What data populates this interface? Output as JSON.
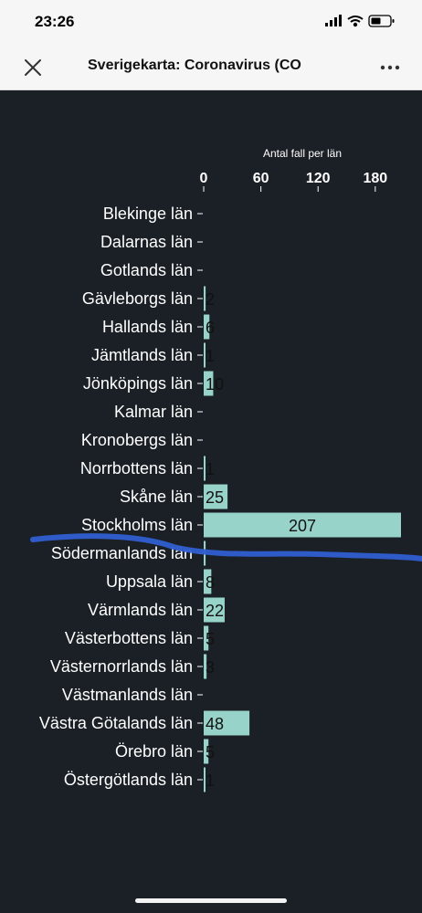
{
  "status_bar": {
    "time": "23:26"
  },
  "nav": {
    "title": "Sverigekarta: Coronavirus (CO",
    "close_icon": "close-icon",
    "more_icon": "more-icon"
  },
  "colors": {
    "background": "#1a2026",
    "bar": "#97d3c8",
    "text": "#ffffff",
    "bar_label": "#111111"
  },
  "chart_data": {
    "type": "bar",
    "orientation": "horizontal",
    "title": "Antal fall per län",
    "xlim": [
      0,
      207
    ],
    "xticks": [
      0,
      60,
      120,
      180
    ],
    "categories": [
      "Blekinge län",
      "Dalarnas län",
      "Gotlands län",
      "Gävleborgs län",
      "Hallands län",
      "Jämtlands län",
      "Jönköpings län",
      "Kalmar län",
      "Kronobergs län",
      "Norrbottens län",
      "Skåne län",
      "Stockholms län",
      "Södermanlands län",
      "Uppsala län",
      "Värmlands län",
      "Västerbottens län",
      "Västernorrlands län",
      "Västmanlands län",
      "Västra Götalands län",
      "Örebro län",
      "Östergötlands län"
    ],
    "values": [
      0,
      0,
      0,
      2,
      6,
      1,
      10,
      0,
      0,
      1,
      25,
      207,
      2,
      8,
      22,
      5,
      3,
      0,
      48,
      5,
      1
    ],
    "data_labels": [
      "",
      "",
      "",
      "2",
      "6",
      "1",
      "10",
      "",
      "",
      "1",
      "25",
      "207",
      "",
      "8",
      "22",
      "5",
      "3",
      "",
      "48",
      "5",
      "1"
    ]
  }
}
